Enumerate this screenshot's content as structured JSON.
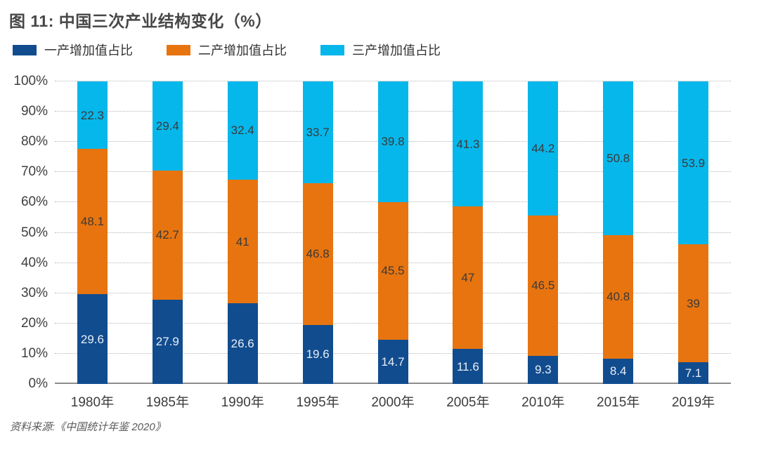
{
  "page": {
    "title": "图 11: 中国三次产业结构变化（%）",
    "source": "资料来源:《中国统计年鉴 2020》"
  },
  "chart_data": {
    "type": "bar",
    "stacked": true,
    "title": "图 11: 中国三次产业结构变化（%）",
    "categories": [
      "1980年",
      "1985年",
      "1990年",
      "1995年",
      "2000年",
      "2005年",
      "2010年",
      "2015年",
      "2019年"
    ],
    "series": [
      {
        "name": "一产增加值占比",
        "color": "#114c8f",
        "label_color": "#e9eef5",
        "values": [
          29.6,
          27.9,
          26.6,
          19.6,
          14.7,
          11.6,
          9.3,
          8.4,
          7.1
        ]
      },
      {
        "name": "二产增加值占比",
        "color": "#e8740f",
        "label_color": "#3a3a3a",
        "values": [
          48.1,
          42.7,
          41,
          46.8,
          45.5,
          47,
          46.5,
          40.8,
          39
        ]
      },
      {
        "name": "三产增加值占比",
        "color": "#06b7eb",
        "label_color": "#3a3a3a",
        "values": [
          22.3,
          29.4,
          32.4,
          33.7,
          39.8,
          41.3,
          44.2,
          50.8,
          53.9
        ]
      }
    ],
    "y_ticks": [
      "0%",
      "10%",
      "20%",
      "30%",
      "40%",
      "50%",
      "60%",
      "70%",
      "80%",
      "90%",
      "100%"
    ],
    "ylim": [
      0,
      100
    ],
    "xlabel": "",
    "ylabel": "",
    "grid": "horizontal-dotted",
    "legend_position": "top-left"
  }
}
